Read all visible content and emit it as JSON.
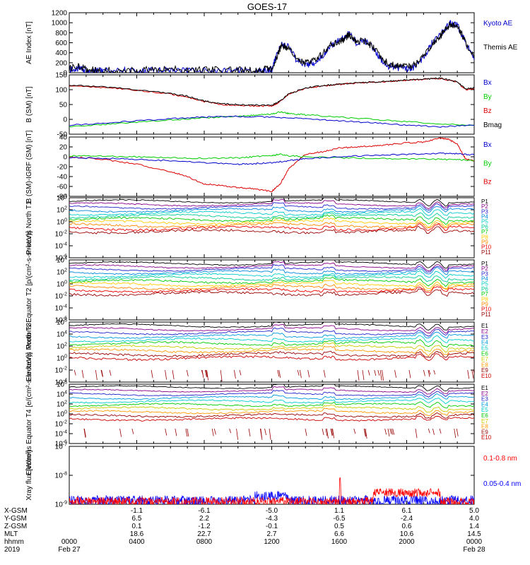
{
  "title": "GOES-17",
  "colors": {
    "black": "#000000",
    "blue": "#0000cc",
    "green": "#00cc00",
    "red": "#dd0000",
    "xray_red": "#ff0000",
    "xray_blue": "#0000ff",
    "dark_red": "#990000"
  },
  "channel_colors_p": [
    "#000000",
    "#880088",
    "#2222cc",
    "#0088dd",
    "#00cccc",
    "#00cc99",
    "#00cc00",
    "#ffcc00",
    "#ff8800",
    "#ee0000",
    "#990000"
  ],
  "channel_colors_e": [
    "#000000",
    "#880088",
    "#2222cc",
    "#0099dd",
    "#00cccc",
    "#00cc00",
    "#cccc00",
    "#ff9900",
    "#990000",
    "#cc0000"
  ],
  "chart_data": [
    {
      "type": "line",
      "ylabel": "AE Index [nT]",
      "ylim": [
        0,
        1200
      ],
      "yticks": [
        "0",
        "200",
        "400",
        "600",
        "800",
        "1000",
        "1200"
      ],
      "yscale": "linear",
      "legend": [
        "Kyoto AE",
        "Themis AE"
      ],
      "legend_colors": [
        "#0000cc",
        "#000000"
      ],
      "series": [
        {
          "name": "Kyoto AE",
          "color": "#0000cc",
          "x": [
            0,
            0.5,
            1,
            1.5,
            2,
            3,
            4,
            5,
            6,
            7,
            8,
            9,
            10,
            11,
            11.5,
            12,
            12.3,
            12.6,
            13,
            13.5,
            14,
            14.5,
            15,
            15.5,
            16,
            16.3,
            16.6,
            17,
            17.5,
            18,
            18.5,
            19,
            19.5,
            20,
            20.5,
            21,
            21.5,
            22,
            22.3,
            22.6,
            23,
            23.5,
            24
          ],
          "y": [
            60,
            80,
            50,
            40,
            30,
            40,
            30,
            40,
            50,
            30,
            40,
            30,
            40,
            30,
            40,
            60,
            350,
            600,
            500,
            250,
            150,
            200,
            350,
            550,
            650,
            700,
            800,
            600,
            650,
            500,
            250,
            120,
            100,
            80,
            120,
            300,
            600,
            750,
            900,
            1000,
            950,
            600,
            250
          ]
        },
        {
          "name": "Themis AE",
          "color": "#000000",
          "x": [
            0,
            0.5,
            1,
            1.5,
            2,
            3,
            4,
            5,
            6,
            7,
            8,
            9,
            10,
            11,
            11.5,
            12,
            12.3,
            12.6,
            13,
            13.5,
            14,
            14.5,
            15,
            15.5,
            16,
            16.3,
            16.6,
            17,
            17.5,
            18,
            18.5,
            19,
            19.5,
            20,
            20.5,
            21,
            21.5,
            22,
            22.3,
            22.6,
            23,
            23.5,
            24
          ],
          "y": [
            90,
            120,
            80,
            60,
            50,
            60,
            50,
            60,
            70,
            50,
            60,
            50,
            60,
            50,
            60,
            80,
            330,
            560,
            480,
            260,
            200,
            260,
            380,
            560,
            620,
            680,
            760,
            620,
            640,
            520,
            280,
            160,
            140,
            120,
            150,
            320,
            580,
            730,
            880,
            970,
            930,
            620,
            300
          ]
        }
      ]
    },
    {
      "type": "line",
      "ylabel": "B (SM) [nT]",
      "ylim": [
        -50,
        150
      ],
      "yticks": [
        "-50",
        "0",
        "50",
        "100",
        "150"
      ],
      "yscale": "linear",
      "legend": [
        "Bx",
        "By",
        "Bz",
        "Bmag"
      ],
      "legend_colors": [
        "#0000cc",
        "#00cc00",
        "#dd0000",
        "#000000"
      ],
      "series": [
        {
          "name": "Bz",
          "color": "#dd0000",
          "x": [
            0,
            2,
            4,
            6,
            7,
            8,
            9,
            10,
            11,
            12,
            12.5,
            13,
            14,
            15,
            16,
            17,
            18,
            19,
            20,
            21,
            22,
            23,
            23.5,
            24
          ],
          "y": [
            112,
            108,
            98,
            85,
            75,
            60,
            50,
            48,
            45,
            45,
            60,
            85,
            105,
            112,
            118,
            122,
            125,
            128,
            132,
            135,
            138,
            125,
            100,
            104
          ]
        },
        {
          "name": "Bmag",
          "color": "#000000",
          "x": [
            0,
            2,
            4,
            6,
            7,
            8,
            9,
            10,
            11,
            12,
            12.5,
            13,
            14,
            15,
            16,
            17,
            18,
            19,
            20,
            21,
            22,
            23,
            23.5,
            24
          ],
          "y": [
            115,
            110,
            100,
            88,
            78,
            62,
            52,
            50,
            48,
            48,
            62,
            86,
            106,
            113,
            119,
            123,
            126,
            129,
            133,
            136,
            139,
            126,
            102,
            106
          ]
        },
        {
          "name": "By",
          "color": "#00cc00",
          "x": [
            0,
            2,
            4,
            6,
            8,
            10,
            11,
            12,
            12.5,
            13,
            14,
            16,
            18,
            20,
            22,
            24
          ],
          "y": [
            -25,
            -18,
            -10,
            -2,
            5,
            10,
            14,
            18,
            25,
            20,
            15,
            8,
            0,
            -8,
            -15,
            -20
          ]
        },
        {
          "name": "Bx",
          "color": "#0000cc",
          "x": [
            0,
            2,
            4,
            6,
            8,
            10,
            12,
            14,
            16,
            18,
            20,
            22,
            24
          ],
          "y": [
            -20,
            -12,
            -5,
            2,
            8,
            10,
            8,
            2,
            -5,
            -12,
            -20,
            -25,
            -20
          ]
        }
      ]
    },
    {
      "type": "line",
      "ylabel": "B (SM)-IGRF (SM) [nT]",
      "ylim": [
        -80,
        40
      ],
      "yticks": [
        "-80",
        "-60",
        "-40",
        "-20",
        "0",
        "20",
        "40"
      ],
      "yscale": "linear",
      "legend": [
        "Bx",
        "By",
        "Bz"
      ],
      "legend_colors": [
        "#0000cc",
        "#00cc00",
        "#dd0000"
      ],
      "series": [
        {
          "name": "Bz",
          "color": "#dd0000",
          "x": [
            0,
            2,
            4,
            6,
            7,
            8,
            9,
            10,
            11,
            12,
            12.5,
            13,
            14,
            15,
            16,
            17,
            18,
            19,
            20,
            21,
            22,
            22.5,
            23,
            23.5,
            24
          ],
          "y": [
            0,
            -5,
            -15,
            -30,
            -40,
            -55,
            -58,
            -62,
            -65,
            -70,
            -55,
            -25,
            5,
            10,
            18,
            20,
            22,
            25,
            28,
            30,
            38,
            35,
            25,
            -5,
            -8
          ]
        },
        {
          "name": "By",
          "color": "#00cc00",
          "x": [
            0,
            2,
            4,
            6,
            8,
            10,
            11,
            12,
            12.5,
            13,
            14,
            16,
            18,
            20,
            22,
            23,
            24
          ],
          "y": [
            2,
            1,
            0,
            -2,
            -3,
            -2,
            0,
            3,
            5,
            2,
            0,
            -2,
            -3,
            -4,
            -5,
            -6,
            -7
          ]
        },
        {
          "name": "Bx",
          "color": "#0000cc",
          "x": [
            0,
            2,
            4,
            6,
            8,
            10,
            11,
            12,
            13,
            14,
            16,
            18,
            20,
            22,
            23,
            24
          ],
          "y": [
            -2,
            -3,
            -5,
            -8,
            -12,
            -15,
            -14,
            -12,
            -8,
            -4,
            0,
            3,
            5,
            7,
            6,
            4
          ]
        }
      ]
    },
    {
      "type": "line",
      "ylabel": "Protons North T1",
      "yscale": "log",
      "ylim": [
        -6,
        4
      ],
      "yticks": [
        "10^4",
        "10^2",
        "10^0",
        "10^-2",
        "10^-4",
        "10^-6"
      ],
      "legend": [
        "P1",
        "P2",
        "P3",
        "P4",
        "P5",
        "P6",
        "P7",
        "P8",
        "P9",
        "P10",
        "P11"
      ]
    },
    {
      "type": "line",
      "ylabel": "Protons Equator T2 [p/(cm²-s-sr-keV)]",
      "yscale": "log",
      "ylim": [
        -6,
        4
      ],
      "yticks": [
        "10^4",
        "10^2",
        "10^0",
        "10^-2",
        "10^-4",
        "10^-6"
      ],
      "legend": [
        "P1",
        "P2",
        "P3",
        "P4",
        "P5",
        "P6",
        "P7",
        "P8",
        "P9",
        "P10",
        "P11"
      ]
    },
    {
      "type": "line",
      "ylabel": "Electrons North T3",
      "yscale": "log",
      "ylim": [
        -4,
        6
      ],
      "yticks": [
        "10^6",
        "10^4",
        "10^2",
        "10^0",
        "10^-2",
        "10^-4"
      ],
      "legend": [
        "E1",
        "E2",
        "E3",
        "E4",
        "E5",
        "E6",
        "E7",
        "E8",
        "E9",
        "E10"
      ]
    },
    {
      "type": "line",
      "ylabel": "Electrons Equator T4 [e/(cm²-s-sr-keV)]",
      "yscale": "log",
      "ylim": [
        -6,
        6
      ],
      "yticks": [
        "10^6",
        "10^4",
        "10^2",
        "10^0",
        "10^-2",
        "10^-4",
        "10^-6"
      ],
      "legend": [
        "E1",
        "E2",
        "E3",
        "E4",
        "E5",
        "E6",
        "E7",
        "E8",
        "E9",
        "E10"
      ]
    },
    {
      "type": "line",
      "ylabel": "Xray flux [W/m²]",
      "yscale": "log",
      "ylim": [
        -9,
        -7
      ],
      "yticks": [
        "10^-7",
        "10^-8",
        "10^-9"
      ],
      "legend": [
        "0.1-0.8 nm",
        "0.05-0.4 nm"
      ],
      "legend_colors": [
        "#ff0000",
        "#0000ff"
      ]
    }
  ],
  "footer": {
    "row_labels": [
      "X-GSM",
      "Y-GSM",
      "Z-GSM",
      "MLT",
      "hhmm",
      "2019"
    ],
    "columns": [
      {
        "values": [
          "",
          "",
          "",
          "",
          "0000",
          "Feb 27"
        ]
      },
      {
        "values": [
          "-1.1",
          "6.5",
          "0.1",
          "18.6",
          "0400",
          ""
        ]
      },
      {
        "values": [
          "-6.1",
          "2.2",
          "-1.2",
          "22.7",
          "0800",
          ""
        ]
      },
      {
        "values": [
          "-5.0",
          "-4.3",
          "-0.1",
          "2.7",
          "1200",
          ""
        ]
      },
      {
        "values": [
          "1.1",
          "-6.5",
          "0.5",
          "6.6",
          "1600",
          ""
        ]
      },
      {
        "values": [
          "6.1",
          "-2.4",
          "0.6",
          "10.6",
          "2000",
          ""
        ]
      },
      {
        "values": [
          "5.0",
          "4.0",
          "1.4",
          "14.5",
          "0000",
          "Feb 28"
        ]
      }
    ]
  }
}
